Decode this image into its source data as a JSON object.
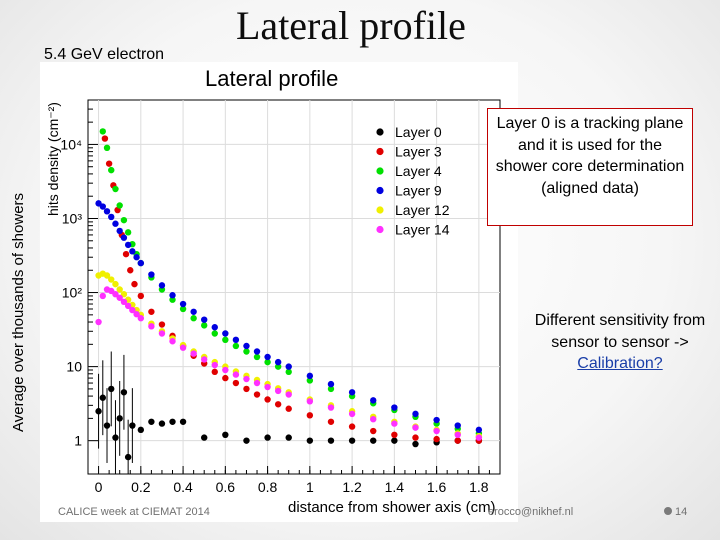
{
  "slide": {
    "title": "Lateral profile",
    "subtitle": "5.4 GeV electron",
    "side_label": "Average over thousands of showers",
    "note_box": "Layer 0 is a tracking plane and it is used for the shower core determination (aligned data)",
    "note2_text": "Different sensitivity from sensor to sensor ->",
    "note2_link": "Calibration?",
    "footer_left": "CALICE week at CIEMAT 2014",
    "footer_email": "erocco@nikhef.nl",
    "slide_number": "14",
    "colors": {
      "title_border": "#c00000",
      "link": "#1a3ea8"
    }
  },
  "chart_data": {
    "type": "scatter",
    "title": "Lateral profile",
    "xlabel": "distance from shower axis (cm)",
    "ylabel": "hits density (cm⁻²)",
    "xlim": [
      -0.05,
      1.9
    ],
    "ylim_log10": [
      -0.45,
      4.6
    ],
    "yscale": "log",
    "x_ticks": [
      "0",
      "0.2",
      "0.4",
      "0.6",
      "0.8",
      "1",
      "1.2",
      "1.4",
      "1.6",
      "1.8"
    ],
    "y_ticks": [
      "1",
      "10",
      "10²",
      "10³",
      "10⁴"
    ],
    "legend_position": "top-right",
    "series": [
      {
        "name": "Layer 0",
        "color": "#000000",
        "x": [
          0.0,
          0.02,
          0.04,
          0.06,
          0.08,
          0.1,
          0.12,
          0.14,
          0.16,
          0.2,
          0.25,
          0.3,
          0.35,
          0.4,
          0.5,
          0.6,
          0.7,
          0.8,
          0.9,
          1.0,
          1.1,
          1.2,
          1.3,
          1.4,
          1.5,
          1.6,
          1.7,
          1.8
        ],
        "y": [
          2.5,
          3.8,
          1.6,
          5.0,
          1.1,
          2.0,
          4.5,
          0.6,
          1.6,
          1.4,
          1.8,
          1.7,
          1.8,
          1.8,
          1.1,
          1.2,
          1.0,
          1.1,
          1.1,
          1.0,
          1.0,
          1.0,
          1.0,
          1.0,
          0.9,
          0.95,
          1.0,
          1.0
        ]
      },
      {
        "name": "Layer 3",
        "color": "#e00000",
        "x": [
          0.03,
          0.05,
          0.07,
          0.09,
          0.11,
          0.13,
          0.15,
          0.17,
          0.2,
          0.25,
          0.3,
          0.35,
          0.4,
          0.45,
          0.5,
          0.55,
          0.6,
          0.65,
          0.7,
          0.75,
          0.8,
          0.85,
          0.9,
          1.0,
          1.1,
          1.2,
          1.3,
          1.4,
          1.5,
          1.6,
          1.7,
          1.8
        ],
        "y": [
          12000,
          5500,
          2800,
          1300,
          600,
          330,
          200,
          130,
          90,
          55,
          37,
          26,
          19,
          14,
          11,
          8.5,
          7,
          6,
          5,
          4.2,
          3.6,
          3.1,
          2.7,
          2.2,
          1.8,
          1.55,
          1.35,
          1.2,
          1.1,
          1.05,
          1.0,
          1.0
        ]
      },
      {
        "name": "Layer 4",
        "color": "#00e000",
        "x": [
          0.02,
          0.04,
          0.06,
          0.08,
          0.1,
          0.12,
          0.14,
          0.16,
          0.18,
          0.2,
          0.25,
          0.3,
          0.35,
          0.4,
          0.45,
          0.5,
          0.55,
          0.6,
          0.65,
          0.7,
          0.75,
          0.8,
          0.85,
          0.9,
          1.0,
          1.1,
          1.2,
          1.3,
          1.4,
          1.5,
          1.6,
          1.7,
          1.8
        ],
        "y": [
          15000,
          9000,
          4500,
          2500,
          1500,
          950,
          650,
          450,
          330,
          250,
          160,
          110,
          80,
          60,
          45,
          36,
          28,
          23,
          19,
          16,
          13.5,
          11.5,
          10,
          8.5,
          6.5,
          5,
          4,
          3.2,
          2.6,
          2.1,
          1.7,
          1.45,
          1.25
        ]
      },
      {
        "name": "Layer 9",
        "color": "#0000e0",
        "x": [
          0.0,
          0.02,
          0.04,
          0.06,
          0.08,
          0.1,
          0.12,
          0.14,
          0.16,
          0.18,
          0.2,
          0.25,
          0.3,
          0.35,
          0.4,
          0.45,
          0.5,
          0.55,
          0.6,
          0.65,
          0.7,
          0.75,
          0.8,
          0.85,
          0.9,
          1.0,
          1.1,
          1.2,
          1.3,
          1.4,
          1.5,
          1.6,
          1.7,
          1.8
        ],
        "y": [
          1600,
          1450,
          1250,
          1050,
          850,
          680,
          550,
          440,
          360,
          300,
          250,
          175,
          125,
          92,
          70,
          55,
          43,
          34,
          28,
          23,
          19,
          16,
          13.5,
          11.5,
          10,
          7.5,
          5.8,
          4.5,
          3.5,
          2.8,
          2.3,
          1.9,
          1.6,
          1.4
        ]
      },
      {
        "name": "Layer 12",
        "color": "#f0f000",
        "x": [
          0.0,
          0.02,
          0.04,
          0.06,
          0.08,
          0.1,
          0.12,
          0.14,
          0.16,
          0.18,
          0.2,
          0.25,
          0.3,
          0.35,
          0.4,
          0.45,
          0.5,
          0.55,
          0.6,
          0.65,
          0.7,
          0.75,
          0.8,
          0.85,
          0.9,
          1.0,
          1.1,
          1.2,
          1.3,
          1.4,
          1.5,
          1.6,
          1.7,
          1.8
        ],
        "y": [
          170,
          180,
          170,
          150,
          130,
          110,
          95,
          80,
          68,
          58,
          50,
          38,
          30,
          24,
          19.5,
          16,
          13.5,
          11.5,
          10,
          8.6,
          7.5,
          6.6,
          5.8,
          5.1,
          4.5,
          3.6,
          3.0,
          2.5,
          2.1,
          1.8,
          1.55,
          1.4,
          1.25,
          1.15
        ]
      },
      {
        "name": "Layer 14",
        "color": "#ff30ff",
        "x": [
          0.0,
          0.02,
          0.04,
          0.06,
          0.08,
          0.1,
          0.12,
          0.14,
          0.16,
          0.18,
          0.2,
          0.25,
          0.3,
          0.35,
          0.4,
          0.45,
          0.5,
          0.55,
          0.6,
          0.65,
          0.7,
          0.75,
          0.8,
          0.85,
          0.9,
          1.0,
          1.1,
          1.2,
          1.3,
          1.4,
          1.5,
          1.6,
          1.7,
          1.8
        ],
        "y": [
          40,
          90,
          110,
          105,
          95,
          85,
          75,
          66,
          58,
          51,
          45,
          35,
          28,
          22,
          18,
          15,
          12.5,
          10.5,
          9,
          7.8,
          6.8,
          6,
          5.3,
          4.7,
          4.2,
          3.4,
          2.8,
          2.3,
          1.95,
          1.7,
          1.5,
          1.35,
          1.2,
          1.1
        ]
      }
    ]
  }
}
